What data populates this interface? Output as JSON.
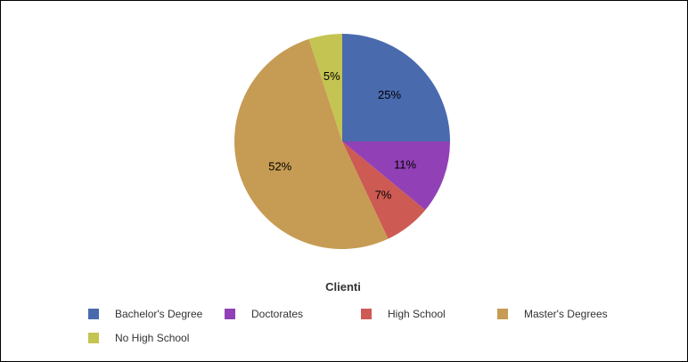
{
  "chart_data": {
    "type": "pie",
    "legend_title": "Clienti",
    "legend_position": "bottom",
    "slices": [
      {
        "name": "Bachelor's Degree",
        "value": 25,
        "label": "25%",
        "color": "#4a6aae"
      },
      {
        "name": "Doctorates",
        "value": 11,
        "label": "11%",
        "color": "#9141b5"
      },
      {
        "name": "High School",
        "value": 7,
        "label": "7%",
        "color": "#cd5a53"
      },
      {
        "name": "Master's Degrees",
        "value": 52,
        "label": "52%",
        "color": "#c69c54"
      },
      {
        "name": "No High School",
        "value": 5,
        "label": "5%",
        "color": "#c4c452"
      }
    ]
  }
}
